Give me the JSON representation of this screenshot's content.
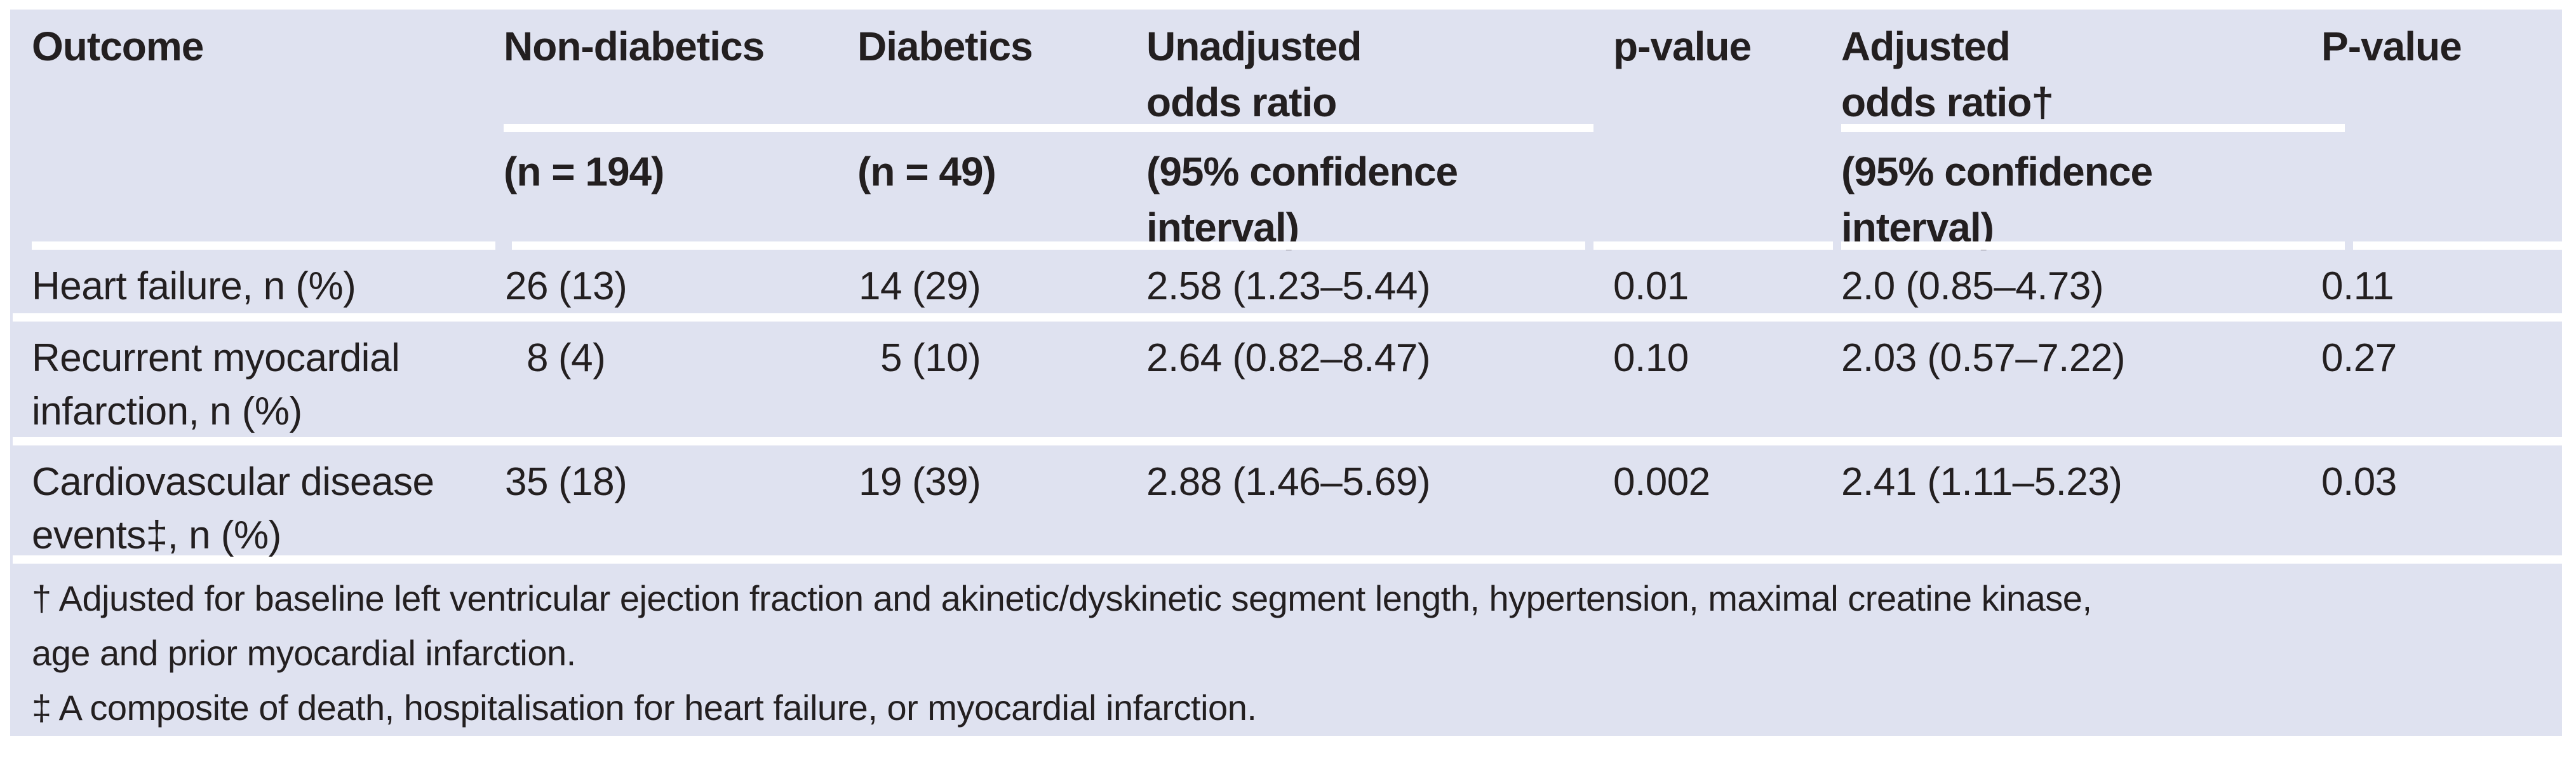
{
  "colors": {
    "panel_bg": "#dfe2f0",
    "text": "#231f20",
    "divider": "#ffffff"
  },
  "table": {
    "columns": [
      {
        "id": "outcome",
        "header_line1": "Outcome",
        "header_line2": "",
        "sub_line1": "",
        "sub_line2": ""
      },
      {
        "id": "non_diabetics",
        "header_line1": "Non-diabetics",
        "header_line2": "",
        "sub_line1": "(n = 194)",
        "sub_line2": ""
      },
      {
        "id": "diabetics",
        "header_line1": "Diabetics",
        "header_line2": "",
        "sub_line1": "(n = 49)",
        "sub_line2": ""
      },
      {
        "id": "unadjusted_odds_ratio",
        "header_line1": "Unadjusted",
        "header_line2": "odds ratio",
        "sub_line1": "(95% confidence",
        "sub_line2": "interval)"
      },
      {
        "id": "p_value_unadjusted",
        "header_line1": "p-value",
        "header_line2": "",
        "sub_line1": "",
        "sub_line2": ""
      },
      {
        "id": "adjusted_odds_ratio",
        "header_line1": "Adjusted",
        "header_line2": "odds ratio†",
        "sub_line1": "(95% confidence",
        "sub_line2": "interval)"
      },
      {
        "id": "p_value_adjusted",
        "header_line1": "P-value",
        "header_line2": "",
        "sub_line1": "",
        "sub_line2": ""
      }
    ],
    "rows": [
      {
        "outcome_line1": "Heart failure, n (%)",
        "outcome_line2": "",
        "non_diabetics_count": "26",
        "non_diabetics_pct": "(13)",
        "diabetics_count": "14",
        "diabetics_pct": "(29)",
        "unadjusted_or": "2.58 (1.23–5.44)",
        "p_value": "0.01",
        "adjusted_or": "2.0 (0.85–4.73)",
        "P_value": "0.11"
      },
      {
        "outcome_line1": "Recurrent myocardial",
        "outcome_line2": "infarction, n (%)",
        "non_diabetics_count": "8",
        "non_diabetics_pct": "(4)",
        "diabetics_count": "5",
        "diabetics_pct": "(10)",
        "unadjusted_or": "2.64 (0.82–8.47)",
        "p_value": "0.10",
        "adjusted_or": "2.03 (0.57–7.22)",
        "P_value": "0.27"
      },
      {
        "outcome_line1": "Cardiovascular disease",
        "outcome_line2": "events‡, n (%)",
        "non_diabetics_count": "35",
        "non_diabetics_pct": "(18)",
        "diabetics_count": "19",
        "diabetics_pct": "(39)",
        "unadjusted_or": "2.88 (1.46–5.69)",
        "p_value": "0.002",
        "adjusted_or": "2.41 (1.11–5.23)",
        "P_value": "0.03"
      }
    ]
  },
  "footnotes": {
    "dagger_line1": "† Adjusted for baseline left ventricular ejection fraction and akinetic/dyskinetic segment length, hypertension, maximal creatine kinase,",
    "dagger_line2": "age and prior myocardial infarction.",
    "double_dagger_line1": "‡ A composite of death, hospitalisation for heart failure, or myocardial infarction."
  }
}
